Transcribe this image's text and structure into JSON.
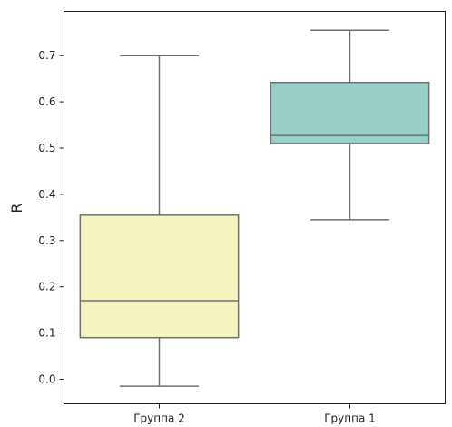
{
  "chart_data": {
    "type": "box",
    "title": "",
    "xlabel": "",
    "ylabel": "R",
    "ylim": [
      -0.05,
      0.78
    ],
    "yticks": [
      0.0,
      0.1,
      0.2,
      0.3,
      0.4,
      0.5,
      0.6,
      0.7
    ],
    "ytick_labels": [
      "0.0",
      "0.1",
      "0.2",
      "0.3",
      "0.4",
      "0.5",
      "0.6",
      "0.7"
    ],
    "grid": false,
    "categories": [
      "Группа 2",
      "Группа 1"
    ],
    "boxes": [
      {
        "category": "Группа 2",
        "whisker_low": -0.015,
        "q1": 0.09,
        "median": 0.17,
        "q3": 0.355,
        "whisker_high": 0.7,
        "color": "#f5f5bf"
      },
      {
        "category": "Группа 1",
        "whisker_low": 0.345,
        "q1": 0.51,
        "median": 0.527,
        "q3": 0.642,
        "whisker_high": 0.755,
        "color": "#97cfc6"
      }
    ],
    "line_color": "#707070"
  }
}
